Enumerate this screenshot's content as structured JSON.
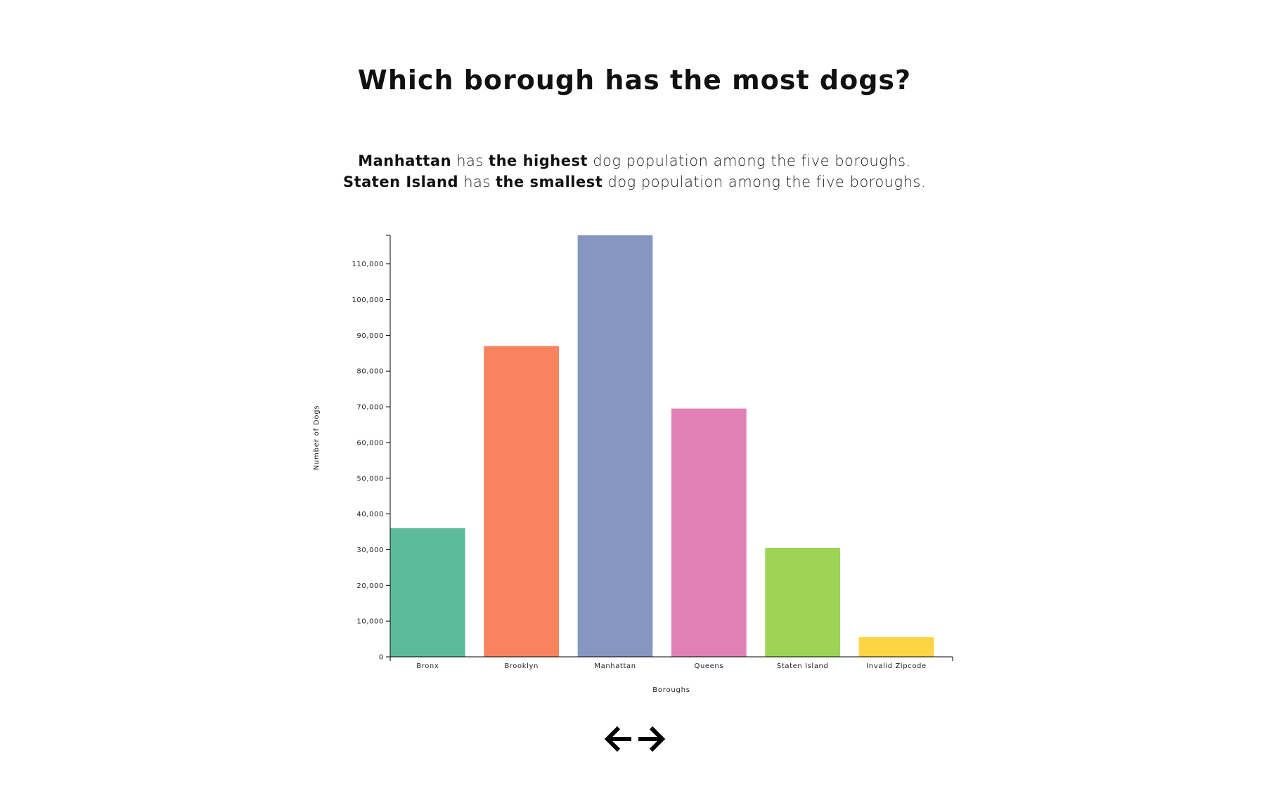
{
  "page": {
    "title": "Which borough has the most dogs?",
    "summary": {
      "line1": {
        "strong1": "Manhattan",
        "text1": " has ",
        "strong2": "the highest",
        "text2": " dog population among the five boroughs."
      },
      "line2": {
        "strong1": "Staten Island",
        "text1": " has ",
        "strong2": "the smallest",
        "text2": " dog population among the five boroughs."
      }
    }
  },
  "chart_data": {
    "type": "bar",
    "categories": [
      "Bronx",
      "Brooklyn",
      "Manhattan",
      "Queens",
      "Staten Island",
      "Invalid Zipcode"
    ],
    "values": [
      36000,
      87000,
      118000,
      69500,
      30500,
      5500
    ],
    "colors": [
      "#5cbb9b",
      "#f7835f",
      "#8696c2",
      "#e281b6",
      "#9dd457",
      "#fdd443"
    ],
    "xlabel": "Boroughs",
    "ylabel": "Number of Dogs",
    "ylim": [
      0,
      118000
    ],
    "yticks": [
      0,
      10000,
      20000,
      30000,
      40000,
      50000,
      60000,
      70000,
      80000,
      90000,
      100000,
      110000
    ],
    "ytick_labels": [
      "0",
      "10,000",
      "20,000",
      "30,000",
      "40,000",
      "50,000",
      "60,000",
      "70,000",
      "80,000",
      "90,000",
      "100,000",
      "110,000"
    ],
    "grid": false,
    "legend": "none"
  },
  "nav": {
    "prev_icon": "arrow-left-icon",
    "next_icon": "arrow-right-icon"
  }
}
